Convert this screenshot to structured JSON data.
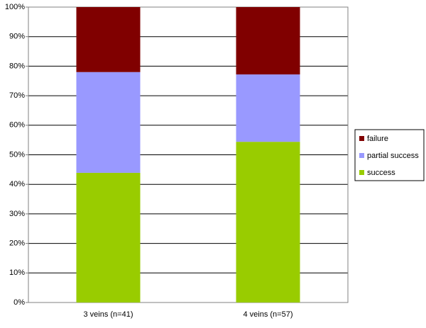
{
  "chart_data": {
    "type": "stacked_bar",
    "categories": [
      "3 veins (n=41)",
      "4 veins (n=57)"
    ],
    "series": [
      {
        "name": "success",
        "color": "#99cc00",
        "values": [
          43.9,
          54.4
        ]
      },
      {
        "name": "partial success",
        "color": "#9999ff",
        "values": [
          34.1,
          22.8
        ]
      },
      {
        "name": "failure",
        "color": "#800000",
        "values": [
          22.0,
          22.8
        ]
      }
    ],
    "ylim": [
      0,
      100
    ],
    "yticks": [
      {
        "value": 0,
        "label": "0%"
      },
      {
        "value": 10,
        "label": "10%"
      },
      {
        "value": 20,
        "label": "20%"
      },
      {
        "value": 30,
        "label": "30%"
      },
      {
        "value": 40,
        "label": "40%"
      },
      {
        "value": 50,
        "label": "50%"
      },
      {
        "value": 60,
        "label": "60%"
      },
      {
        "value": 70,
        "label": "70%"
      },
      {
        "value": 80,
        "label": "80%"
      },
      {
        "value": 90,
        "label": "90%"
      },
      {
        "value": 100,
        "label": "100%"
      }
    ],
    "grid": true,
    "legend": "right"
  }
}
